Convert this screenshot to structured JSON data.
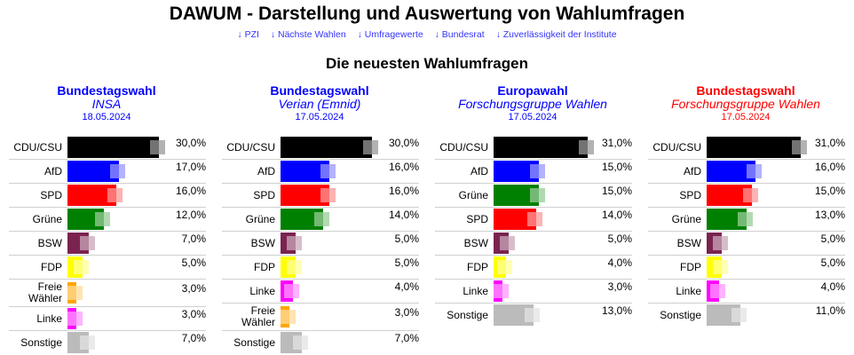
{
  "title": "DAWUM - Darstellung und Auswertung von Wahlumfragen",
  "links": [
    "↓ PZI",
    "↓ Nächste Wahlen",
    "↓ Umfragewerte",
    "↓ Bundesrat",
    "↓ Zuverlässigkeit der Institute"
  ],
  "section_title": "Die neuesten Wahlumfragen",
  "party_colors": {
    "CDU/CSU": "#000000",
    "AfD": "#0000ff",
    "SPD": "#ff0000",
    "Grüne": "#008000",
    "BSW": "#7a2350",
    "FDP": "#ffff00",
    "Freie Wähler": "#ffa500",
    "Linke": "#ff00ff",
    "Sonstige": "#bbbbbb"
  },
  "panels": [
    {
      "title": "Bundestagswahl",
      "institute": "INSA",
      "date": "18.05.2024",
      "color": "#0000ff",
      "results": [
        {
          "party": "CDU/CSU",
          "value": 30,
          "label": "30,0%"
        },
        {
          "party": "AfD",
          "value": 17,
          "label": "17,0%"
        },
        {
          "party": "SPD",
          "value": 16,
          "label": "16,0%"
        },
        {
          "party": "Grüne",
          "value": 12,
          "label": "12,0%"
        },
        {
          "party": "BSW",
          "value": 7,
          "label": "7,0%"
        },
        {
          "party": "FDP",
          "value": 5,
          "label": "5,0%"
        },
        {
          "party": "Freie Wähler",
          "value": 3,
          "label": "3,0%"
        },
        {
          "party": "Linke",
          "value": 3,
          "label": "3,0%"
        },
        {
          "party": "Sonstige",
          "value": 7,
          "label": "7,0%"
        }
      ]
    },
    {
      "title": "Bundestagswahl",
      "institute": "Verian (Emnid)",
      "date": "17.05.2024",
      "color": "#0000ff",
      "results": [
        {
          "party": "CDU/CSU",
          "value": 30,
          "label": "30,0%"
        },
        {
          "party": "AfD",
          "value": 16,
          "label": "16,0%"
        },
        {
          "party": "SPD",
          "value": 16,
          "label": "16,0%"
        },
        {
          "party": "Grüne",
          "value": 14,
          "label": "14,0%"
        },
        {
          "party": "BSW",
          "value": 5,
          "label": "5,0%"
        },
        {
          "party": "FDP",
          "value": 5,
          "label": "5,0%"
        },
        {
          "party": "Linke",
          "value": 4,
          "label": "4,0%"
        },
        {
          "party": "Freie Wähler",
          "value": 3,
          "label": "3,0%"
        },
        {
          "party": "Sonstige",
          "value": 7,
          "label": "7,0%"
        }
      ]
    },
    {
      "title": "Europawahl",
      "institute": "Forschungsgruppe Wahlen",
      "date": "17.05.2024",
      "color": "#0000ff",
      "results": [
        {
          "party": "CDU/CSU",
          "value": 31,
          "label": "31,0%"
        },
        {
          "party": "AfD",
          "value": 15,
          "label": "15,0%"
        },
        {
          "party": "Grüne",
          "value": 15,
          "label": "15,0%"
        },
        {
          "party": "SPD",
          "value": 14,
          "label": "14,0%"
        },
        {
          "party": "BSW",
          "value": 5,
          "label": "5,0%"
        },
        {
          "party": "FDP",
          "value": 4,
          "label": "4,0%"
        },
        {
          "party": "Linke",
          "value": 3,
          "label": "3,0%"
        },
        {
          "party": "Sonstige",
          "value": 13,
          "label": "13,0%"
        }
      ]
    },
    {
      "title": "Bundestagswahl",
      "institute": "Forschungsgruppe Wahlen",
      "date": "17.05.2024",
      "color": "#ff0000",
      "results": [
        {
          "party": "CDU/CSU",
          "value": 31,
          "label": "31,0%"
        },
        {
          "party": "AfD",
          "value": 16,
          "label": "16,0%"
        },
        {
          "party": "SPD",
          "value": 15,
          "label": "15,0%"
        },
        {
          "party": "Grüne",
          "value": 13,
          "label": "13,0%"
        },
        {
          "party": "BSW",
          "value": 5,
          "label": "5,0%"
        },
        {
          "party": "FDP",
          "value": 5,
          "label": "5,0%"
        },
        {
          "party": "Linke",
          "value": 4,
          "label": "4,0%"
        },
        {
          "party": "Sonstige",
          "value": 11,
          "label": "11,0%"
        }
      ]
    }
  ]
}
